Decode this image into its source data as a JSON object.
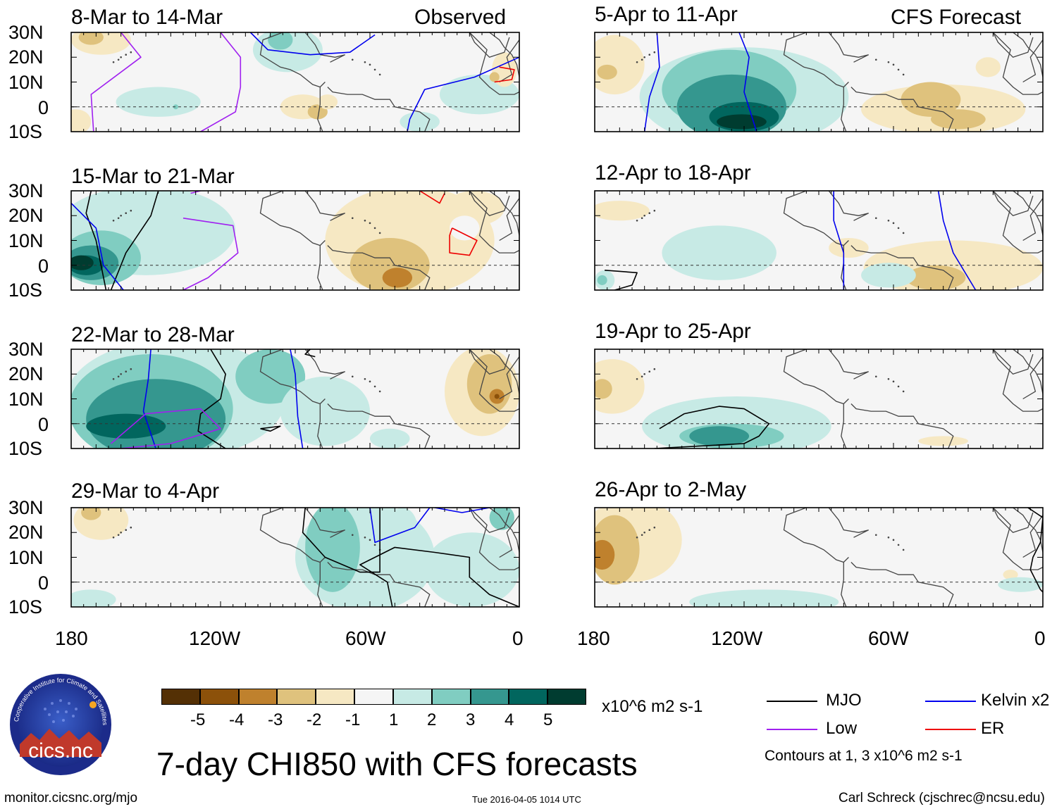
{
  "source": {
    "site": "monitor.cicsnc.org/mjo",
    "timestamp": "Tue 2016-04-05 1014 UTC",
    "author": "Carl Schreck (cjschrec@ncsu.edu)",
    "logo_text": "cics.nc",
    "logo_ring": "Cooperative Institute for Climate and Satellites"
  },
  "figure_title": "7-day CHI850 with CFS forecasts",
  "columns": {
    "left_header": "Observed",
    "right_header": "CFS Forecast"
  },
  "lat_ticks": [
    "30N",
    "20N",
    "10N",
    "0",
    "10S"
  ],
  "lon_ticks": [
    "180",
    "120W",
    "60W",
    "0"
  ],
  "panels_left": [
    {
      "period": "8-Mar to 14-Mar"
    },
    {
      "period": "15-Mar to 21-Mar"
    },
    {
      "period": "22-Mar to 28-Mar"
    },
    {
      "period": "29-Mar to 4-Apr"
    }
  ],
  "panels_right": [
    {
      "period": "5-Apr to 11-Apr"
    },
    {
      "period": "12-Apr to 18-Apr"
    },
    {
      "period": "19-Apr to 25-Apr"
    },
    {
      "period": "26-Apr to 2-May"
    }
  ],
  "colorbar": {
    "labels": [
      "-5",
      "-4",
      "-3",
      "-2",
      "-1",
      "1",
      "2",
      "3",
      "4",
      "5"
    ],
    "colors": [
      "#543005",
      "#8c510a",
      "#bf812d",
      "#dfc27d",
      "#f6e8c3",
      "#f5f5f5",
      "#c7eae5",
      "#80cdc1",
      "#35978f",
      "#01665e",
      "#003c30"
    ],
    "units": "x10^6 m2 s-1"
  },
  "legend": {
    "items": [
      {
        "label": "MJO",
        "color": "#000000"
      },
      {
        "label": "Kelvin x2",
        "color": "#0000ee"
      },
      {
        "label": "Low",
        "color": "#a020f0"
      },
      {
        "label": "ER",
        "color": "#ee0000"
      }
    ],
    "note": "Contours at 1, 3 x10^6 m2 s-1"
  }
}
